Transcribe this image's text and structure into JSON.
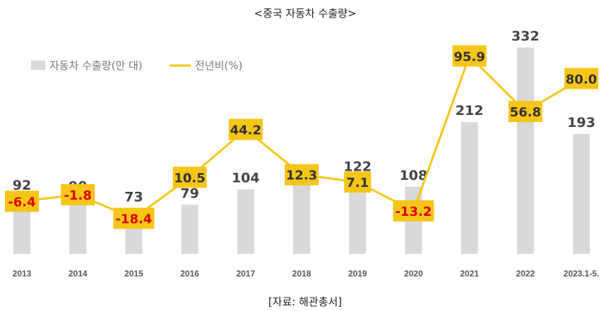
{
  "chart_data": {
    "type": "bar",
    "title": "<중국 자동차 수출량>",
    "source": "[자료: 해관총서]",
    "categories": [
      "2013",
      "2014",
      "2015",
      "2016",
      "2017",
      "2018",
      "2019",
      "2020",
      "2021",
      "2022",
      "2023.1-5."
    ],
    "series": [
      {
        "name": "자동차 수출량(만 대)",
        "type": "bar",
        "axis": "left",
        "color": "#d9d9d9",
        "values": [
          92,
          90,
          73,
          79,
          104,
          115,
          122,
          108,
          212,
          332,
          193
        ]
      },
      {
        "name": "전년비(%)",
        "type": "line",
        "axis": "right",
        "color": "#f5c518",
        "values": [
          -6.4,
          -1.8,
          -18.4,
          10.5,
          44.2,
          12.3,
          7.1,
          -13.2,
          95.9,
          56.8,
          80.0
        ],
        "labels": [
          "-6.4",
          "-1.8",
          "-18.4",
          "10.5",
          "44.2",
          "12.3",
          "7.1",
          "-13.2",
          "95.9",
          "56.8",
          "80.0"
        ]
      }
    ],
    "legend": {
      "bar_label": "자동차 수출량(만 대)",
      "line_label": "전년비(%)",
      "position": "top-left"
    },
    "colors": {
      "bar": "#d9d9d9",
      "line": "#f5c518",
      "label_box": "#f5c518",
      "negative_text": "#e00000",
      "positive_text": "#333333"
    }
  }
}
